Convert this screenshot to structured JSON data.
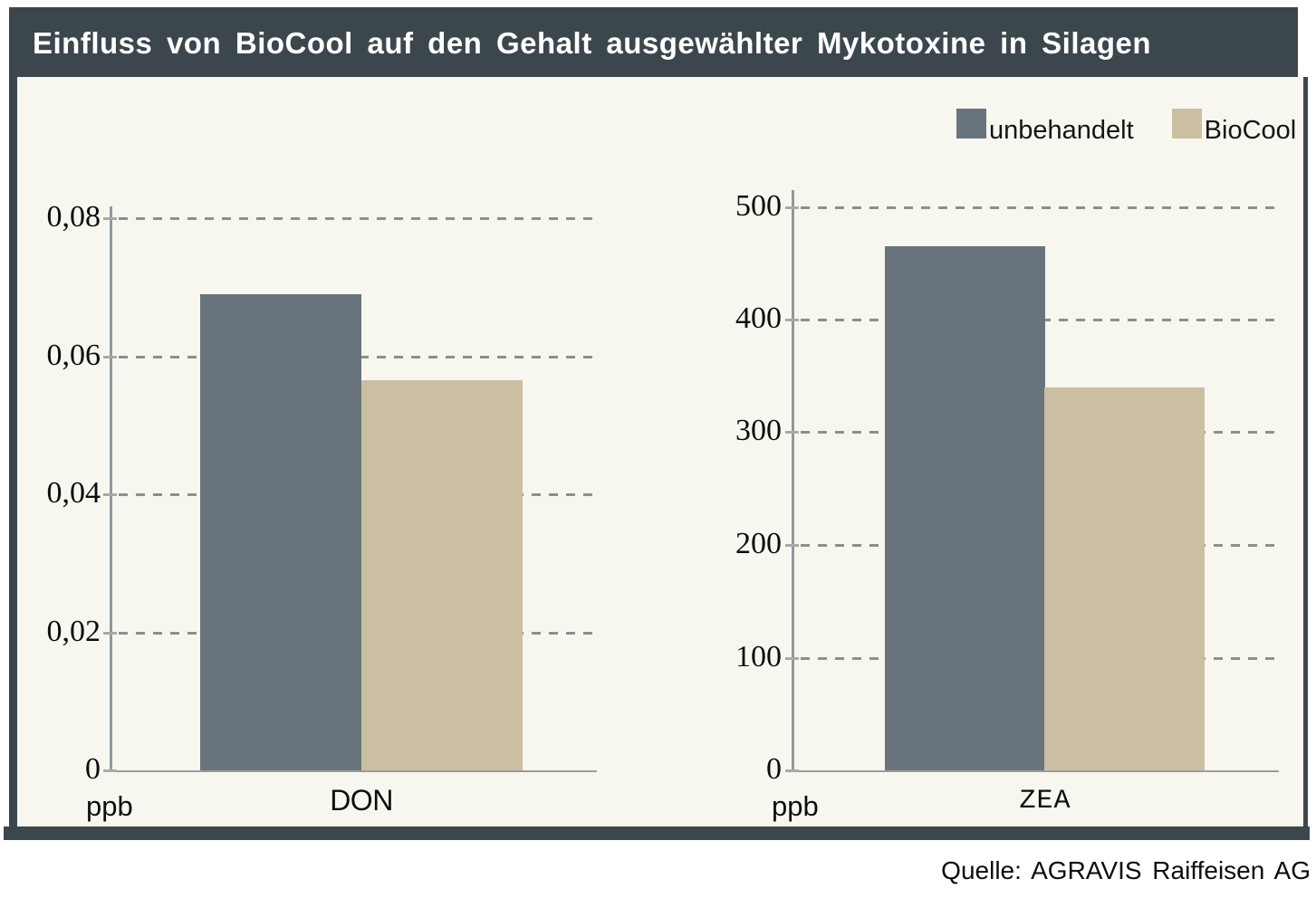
{
  "title": "Einfluss von BioCool auf den Gehalt ausgewählter Mykotoxine in Silagen",
  "source": "Quelle: AGRAVIS  Raiffeisen AG",
  "legend": {
    "position": "top-right",
    "items": [
      {
        "label": "unbehandelt",
        "color": "#6a747c"
      },
      {
        "label": "BioCool",
        "color": "#cbbfa3"
      }
    ]
  },
  "colors": {
    "frame": "#3c474d",
    "panel_background": "#f8f7ef",
    "page_background": "#ffffff",
    "title_text": "#ffffff",
    "gridline": "#8e8e8e",
    "y_axis_line": "#8c99a4",
    "x_axis_line": "#9b9b9b",
    "bar_unbehandelt": "#6a747c",
    "bar_biocool": "#cbbfa3",
    "label_text": "#0d0d0d"
  },
  "chart_data": [
    {
      "type": "bar",
      "title": "DON",
      "unit_label": "ppb",
      "categories": [
        "DON"
      ],
      "series": [
        {
          "name": "unbehandelt",
          "values": [
            0.069
          ]
        },
        {
          "name": "BioCool",
          "values": [
            0.0565
          ]
        }
      ],
      "yticks": [
        {
          "value": 0,
          "label": "0"
        },
        {
          "value": 0.02,
          "label": "0,02"
        },
        {
          "value": 0.04,
          "label": "0,04"
        },
        {
          "value": 0.06,
          "label": "0,06"
        },
        {
          "value": 0.08,
          "label": "0,08"
        }
      ],
      "ylim": [
        0,
        0.082
      ],
      "grid": "dashed-horizontal",
      "legend_position": "shared top-right"
    },
    {
      "type": "bar",
      "title": "ZEA",
      "unit_label": "ppb",
      "categories": [
        "ZEA"
      ],
      "series": [
        {
          "name": "unbehandelt",
          "values": [
            465
          ]
        },
        {
          "name": "BioCool",
          "values": [
            340
          ]
        }
      ],
      "yticks": [
        {
          "value": 0,
          "label": "0"
        },
        {
          "value": 100,
          "label": "100"
        },
        {
          "value": 200,
          "label": "200"
        },
        {
          "value": 300,
          "label": "300"
        },
        {
          "value": 400,
          "label": "400"
        },
        {
          "value": 500,
          "label": "500"
        }
      ],
      "ylim": [
        0,
        515
      ],
      "grid": "dashed-horizontal",
      "legend_position": "shared top-right"
    }
  ]
}
